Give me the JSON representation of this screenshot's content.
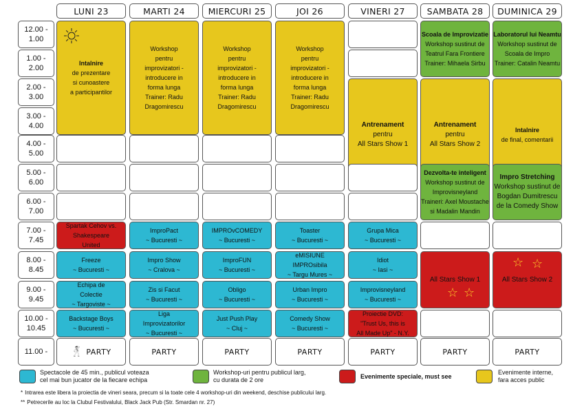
{
  "days": [
    "LUNI 23",
    "MARTI 24",
    "MIERCURI 25",
    "JOI 26",
    "VINERI 27",
    "SAMBATA 28",
    "DUMINICA 29"
  ],
  "times": [
    [
      "12.00 -",
      "1.00"
    ],
    [
      "1.00 -",
      "2.00"
    ],
    [
      "2.00 -",
      "3.00"
    ],
    [
      "3.00 -",
      "4.00"
    ],
    [
      "4.00 -",
      "5.00"
    ],
    [
      "5.00 -",
      "6.00"
    ],
    [
      "6.00 -",
      "7.00"
    ],
    [
      "7.00 -",
      "7.45"
    ],
    [
      "8.00 -",
      "8.45"
    ],
    [
      "9.00 -",
      "9.45"
    ],
    [
      "10.00 -",
      "10.45"
    ],
    [
      "11.00 -"
    ]
  ],
  "events": [
    {
      "day": 0,
      "row": 0,
      "span": 4,
      "color": "yellow",
      "lines": [
        "Intalnire",
        "de prezentare",
        "si cunoastere",
        "a participantilor"
      ],
      "bold": [
        0
      ],
      "icon": "sun"
    },
    {
      "day": 1,
      "row": 0,
      "span": 4,
      "color": "yellow",
      "lines": [
        "Workshop",
        "pentru",
        "improvizatori -",
        "introducere in",
        "forma lunga",
        "Trainer: Radu",
        "Dragomirescu"
      ]
    },
    {
      "day": 2,
      "row": 0,
      "span": 4,
      "color": "yellow",
      "lines": [
        "Workshop",
        "pentru",
        "improvizatori -",
        "introducere in",
        "forma lunga",
        "Trainer: Radu",
        "Dragomirescu"
      ]
    },
    {
      "day": 3,
      "row": 0,
      "span": 4,
      "color": "yellow",
      "lines": [
        "Workshop",
        "pentru",
        "improvizatori -",
        "introducere in",
        "forma lunga",
        "Trainer: Radu",
        "Dragomirescu"
      ]
    },
    {
      "day": 4,
      "row": 0,
      "span": 1,
      "color": "white",
      "lines": []
    },
    {
      "day": 4,
      "row": 1,
      "span": 1,
      "color": "white",
      "lines": []
    },
    {
      "day": 4,
      "row": 2,
      "span": 4,
      "color": "yellow",
      "lines": [
        "Antrenament",
        "pentru",
        "All Stars Show 1"
      ],
      "bold": [
        0
      ],
      "big": true
    },
    {
      "day": 5,
      "row": 0,
      "span": 2,
      "color": "green",
      "lines": [
        "Scoala de Improvizatie",
        "Workshop sustinut de",
        "Teatrul Fara Frontiere",
        "Trainer: Mihaela Sirbu"
      ],
      "bold": [
        0
      ]
    },
    {
      "day": 6,
      "row": 0,
      "span": 2,
      "color": "green",
      "lines": [
        "Laboratorul lui Neamtu",
        "Workshop sustinut de",
        "Scoala de Impro",
        "Trainer: Catalin Neamtu"
      ],
      "bold": [
        0
      ]
    },
    {
      "day": 5,
      "row": 2,
      "span": 4,
      "color": "yellow",
      "lines": [
        "Antrenament",
        "pentru",
        "All Stars Show 2"
      ],
      "bold": [
        0
      ],
      "big": true
    },
    {
      "day": 6,
      "row": 2,
      "span": 4,
      "color": "yellow",
      "lines": [
        "Intalnire",
        "de final, comentarii"
      ],
      "bold": [
        0
      ]
    },
    {
      "day": 0,
      "row": 4,
      "span": 1,
      "color": "white",
      "lines": []
    },
    {
      "day": 1,
      "row": 4,
      "span": 1,
      "color": "white",
      "lines": []
    },
    {
      "day": 2,
      "row": 4,
      "span": 1,
      "color": "white",
      "lines": []
    },
    {
      "day": 3,
      "row": 4,
      "span": 1,
      "color": "white",
      "lines": []
    },
    {
      "day": 0,
      "row": 5,
      "span": 1,
      "color": "white",
      "lines": []
    },
    {
      "day": 1,
      "row": 5,
      "span": 1,
      "color": "white",
      "lines": []
    },
    {
      "day": 2,
      "row": 5,
      "span": 1,
      "color": "white",
      "lines": []
    },
    {
      "day": 3,
      "row": 5,
      "span": 1,
      "color": "white",
      "lines": []
    },
    {
      "day": 4,
      "row": 5,
      "span": 1,
      "color": "white",
      "lines": []
    },
    {
      "day": 0,
      "row": 6,
      "span": 1,
      "color": "white",
      "lines": []
    },
    {
      "day": 1,
      "row": 6,
      "span": 1,
      "color": "white",
      "lines": []
    },
    {
      "day": 2,
      "row": 6,
      "span": 1,
      "color": "white",
      "lines": []
    },
    {
      "day": 3,
      "row": 6,
      "span": 1,
      "color": "white",
      "lines": []
    },
    {
      "day": 4,
      "row": 6,
      "span": 1,
      "color": "white",
      "lines": []
    },
    {
      "day": 5,
      "row": 5,
      "span": 2,
      "color": "green",
      "lines": [
        "Dezvolta-te inteligent",
        "Workshop sustinut de",
        "Improvisneyland",
        "Traineri: Axel Moustache",
        "si Madalin Mandin"
      ],
      "bold": [
        0
      ]
    },
    {
      "day": 6,
      "row": 5,
      "span": 2,
      "color": "green",
      "lines": [
        "Impro Stretching",
        "Workshop sustinut de",
        "Bogdan Dumitrescu",
        "de la Comedy Show"
      ],
      "bold": [
        0
      ],
      "big": true
    },
    {
      "day": 0,
      "row": 7,
      "span": 1,
      "color": "red",
      "lines": [
        "Spartak Cehov vs.",
        "Shakespeare",
        "United"
      ]
    },
    {
      "day": 1,
      "row": 7,
      "span": 1,
      "color": "cyan",
      "lines": [
        "ImproPact",
        "~ Bucuresti ~"
      ]
    },
    {
      "day": 2,
      "row": 7,
      "span": 1,
      "color": "cyan",
      "lines": [
        "IMPROvCOMEDY",
        "~ Bucuresti ~"
      ]
    },
    {
      "day": 3,
      "row": 7,
      "span": 1,
      "color": "cyan",
      "lines": [
        "Toaster",
        "~ Bucuresti ~"
      ]
    },
    {
      "day": 4,
      "row": 7,
      "span": 1,
      "color": "cyan",
      "lines": [
        "Grupa Mica",
        "~ Bucuresti ~"
      ]
    },
    {
      "day": 5,
      "row": 7,
      "span": 1,
      "color": "white",
      "lines": []
    },
    {
      "day": 6,
      "row": 7,
      "span": 1,
      "color": "white",
      "lines": []
    },
    {
      "day": 0,
      "row": 8,
      "span": 1,
      "color": "cyan",
      "lines": [
        "Freeze",
        "~ Bucuresti ~"
      ]
    },
    {
      "day": 1,
      "row": 8,
      "span": 1,
      "color": "cyan",
      "lines": [
        "Impro Show",
        "~ Cralova ~"
      ]
    },
    {
      "day": 2,
      "row": 8,
      "span": 1,
      "color": "cyan",
      "lines": [
        "ImproFUN",
        "~ Bucuresti ~"
      ]
    },
    {
      "day": 3,
      "row": 8,
      "span": 1,
      "color": "cyan",
      "lines": [
        "eMISIUNE",
        "IMPROsibila",
        "~ Targu Mures ~"
      ]
    },
    {
      "day": 4,
      "row": 8,
      "span": 1,
      "color": "cyan",
      "lines": [
        "Idiot",
        "~ Iasi ~"
      ]
    },
    {
      "day": 5,
      "row": 8,
      "span": 2,
      "color": "red",
      "lines": [
        "All Stars Show 1"
      ],
      "big": true,
      "stars": "bottom"
    },
    {
      "day": 6,
      "row": 8,
      "span": 2,
      "color": "red",
      "lines": [
        "All Stars Show 2"
      ],
      "big": true,
      "stars": "top"
    },
    {
      "day": 0,
      "row": 9,
      "span": 1,
      "color": "cyan",
      "lines": [
        "Echipa de",
        "Colectie",
        "~ Targoviste ~"
      ]
    },
    {
      "day": 1,
      "row": 9,
      "span": 1,
      "color": "cyan",
      "lines": [
        "Zis si Facut",
        "~ Bucuresti ~"
      ]
    },
    {
      "day": 2,
      "row": 9,
      "span": 1,
      "color": "cyan",
      "lines": [
        "Obligo",
        "~ Bucuresti ~"
      ]
    },
    {
      "day": 3,
      "row": 9,
      "span": 1,
      "color": "cyan",
      "lines": [
        "Urban Impro",
        "~ Bucuresti ~"
      ]
    },
    {
      "day": 4,
      "row": 9,
      "span": 1,
      "color": "cyan",
      "lines": [
        "Improvisneyland",
        "~ Bucuresti ~"
      ]
    },
    {
      "day": 0,
      "row": 10,
      "span": 1,
      "color": "cyan",
      "lines": [
        "Backstage Boys",
        "~ Bucuresti ~"
      ]
    },
    {
      "day": 1,
      "row": 10,
      "span": 1,
      "color": "cyan",
      "lines": [
        "Liga",
        "Improvizatorilor",
        "~ Bucuresti ~"
      ]
    },
    {
      "day": 2,
      "row": 10,
      "span": 1,
      "color": "cyan",
      "lines": [
        "Just Push Play",
        "~ Cluj ~"
      ]
    },
    {
      "day": 3,
      "row": 10,
      "span": 1,
      "color": "cyan",
      "lines": [
        "Comedy Show",
        "~ Bucuresti ~"
      ]
    },
    {
      "day": 4,
      "row": 10,
      "span": 1,
      "color": "red",
      "lines": [
        "Proiectie DVD:",
        "\"Trust Us, this is",
        "All Made Up\" - N.Y."
      ]
    },
    {
      "day": 5,
      "row": 10,
      "span": 1,
      "color": "white",
      "lines": []
    },
    {
      "day": 6,
      "row": 10,
      "span": 1,
      "color": "white",
      "lines": []
    }
  ],
  "party_label": "PARTY",
  "colors": {
    "yellow": "#e7c71d",
    "green": "#6fb43e",
    "cyan": "#2db8d2",
    "red": "#cc1b1b"
  },
  "legend": [
    {
      "color": "cyan",
      "lines": [
        "Spectacole de 45 min., publicul voteaza",
        "cel mai bun jucator de la fiecare echipa"
      ]
    },
    {
      "color": "green",
      "lines": [
        "Workshop-uri pentru publicul larg,",
        "cu durata de 2 ore"
      ]
    },
    {
      "color": "red",
      "lines": [
        "Evenimente speciale, must see"
      ],
      "bold": true
    },
    {
      "color": "yellow",
      "lines": [
        "Evenimente interne,",
        "fara acces public"
      ]
    }
  ],
  "notes": [
    {
      "mark": "*",
      "text": "Intrarea este libera la proiectia de vineri seara, precum si la toate cele 4 workshop-uri din weekend, deschise publicului larg."
    },
    {
      "mark": "**",
      "text": "Petrecerile au loc la Clubul Festivalului, Black Jack Pub (Str. Smardan nr. 27)"
    }
  ],
  "icons": {
    "sun": "sun-icon",
    "dancer": "dancer-icon",
    "star": "star-icon"
  }
}
